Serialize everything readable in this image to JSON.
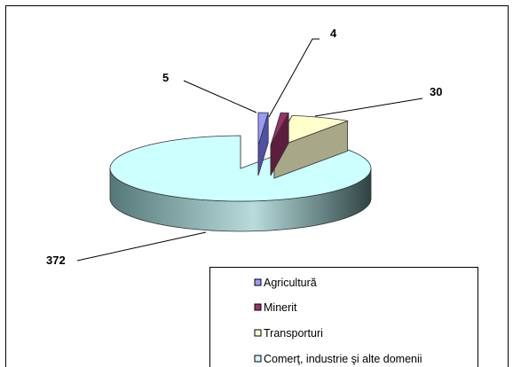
{
  "chart_data": {
    "type": "pie",
    "style": "3d-exploded",
    "title": "",
    "categories": [
      "Agricultură",
      "Minerit",
      "Transporturi",
      "Comerţ, industrie şi alte domenii"
    ],
    "values": [
      5,
      4,
      30,
      372
    ],
    "data_labels": [
      "5",
      "4",
      "30",
      "372"
    ],
    "legend": {
      "placement": "bottom-right",
      "entries": [
        "Agricultură",
        "Minerit",
        "Transporturi",
        "Comerţ, industrie şi alte domenii"
      ]
    },
    "colors": {
      "top": [
        "#9999FF",
        "#993366",
        "#FFFFCC",
        "#CCFFFF"
      ],
      "side": [
        "#5050A8",
        "#5C1E3C",
        "#A8A888",
        "#547878"
      ],
      "side_dark": [
        "#30306A",
        "#3A1226",
        "#6E6E58",
        "#2E4444"
      ]
    },
    "grid": false
  }
}
